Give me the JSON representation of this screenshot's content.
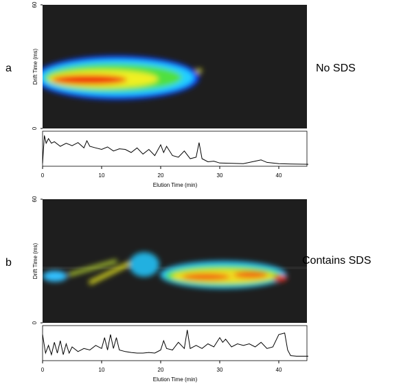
{
  "chart_data": [
    {
      "type": "line",
      "label": "a",
      "annotation": "No SDS",
      "ylabel": "Drift Time (ms)",
      "xlabel": "Elution Time (min)",
      "ylim": [
        0,
        60
      ],
      "yticks": [
        0,
        60
      ],
      "xlim": [
        0,
        45
      ],
      "xticks": [
        0,
        10,
        20,
        30,
        40
      ],
      "series": [
        {
          "color": "#000000",
          "ylim": [
            0,
            1
          ],
          "x": [
            0,
            0.3,
            0.6,
            1,
            1.5,
            2,
            3,
            4,
            5,
            6,
            7,
            7.5,
            8,
            9,
            10,
            11,
            12,
            13,
            14,
            15,
            16,
            17,
            18,
            19,
            20,
            20.5,
            21,
            22,
            23,
            24,
            25,
            26,
            26.5,
            27,
            28,
            29,
            30,
            32,
            34,
            36,
            37,
            38,
            40,
            42,
            45
          ],
          "values": [
            0.05,
            0.95,
            0.7,
            0.85,
            0.7,
            0.75,
            0.6,
            0.7,
            0.62,
            0.72,
            0.55,
            0.78,
            0.6,
            0.55,
            0.5,
            0.58,
            0.45,
            0.52,
            0.5,
            0.4,
            0.55,
            0.35,
            0.5,
            0.3,
            0.65,
            0.4,
            0.6,
            0.3,
            0.25,
            0.45,
            0.2,
            0.25,
            0.72,
            0.2,
            0.1,
            0.12,
            0.06,
            0.05,
            0.04,
            0.12,
            0.16,
            0.08,
            0.04,
            0.03,
            0.02
          ]
        }
      ]
    },
    {
      "type": "line",
      "label": "b",
      "annotation": "Contains SDS",
      "ylabel": "Drift Time (ms)",
      "xlabel": "Elution Time (min)",
      "ylim": [
        0,
        60
      ],
      "yticks": [
        0,
        60
      ],
      "xlim": [
        0,
        45
      ],
      "xticks": [
        0,
        10,
        20,
        30,
        40
      ],
      "series": [
        {
          "color": "#000000",
          "ylim": [
            0,
            1
          ],
          "x": [
            0,
            0.5,
            1,
            1.5,
            2,
            2.5,
            3,
            3.5,
            4,
            4.5,
            5,
            6,
            7,
            8,
            9,
            10,
            10.5,
            11,
            11.5,
            12,
            12.5,
            13,
            14,
            15,
            16,
            17,
            18,
            19,
            20,
            20.5,
            21,
            22,
            23,
            24,
            24.5,
            25,
            26,
            27,
            28,
            29,
            30,
            30.5,
            31,
            32,
            33,
            34,
            35,
            36,
            37,
            38,
            39,
            40,
            41,
            41.5,
            42,
            43,
            45
          ],
          "values": [
            0.8,
            0.2,
            0.45,
            0.15,
            0.55,
            0.2,
            0.6,
            0.15,
            0.5,
            0.2,
            0.4,
            0.25,
            0.35,
            0.3,
            0.45,
            0.35,
            0.7,
            0.3,
            0.8,
            0.35,
            0.7,
            0.3,
            0.25,
            0.22,
            0.2,
            0.2,
            0.22,
            0.2,
            0.3,
            0.6,
            0.35,
            0.3,
            0.55,
            0.35,
            0.95,
            0.35,
            0.45,
            0.35,
            0.5,
            0.4,
            0.7,
            0.55,
            0.65,
            0.4,
            0.5,
            0.45,
            0.5,
            0.4,
            0.55,
            0.35,
            0.4,
            0.8,
            0.85,
            0.3,
            0.12,
            0.1,
            0.1
          ]
        }
      ]
    }
  ]
}
